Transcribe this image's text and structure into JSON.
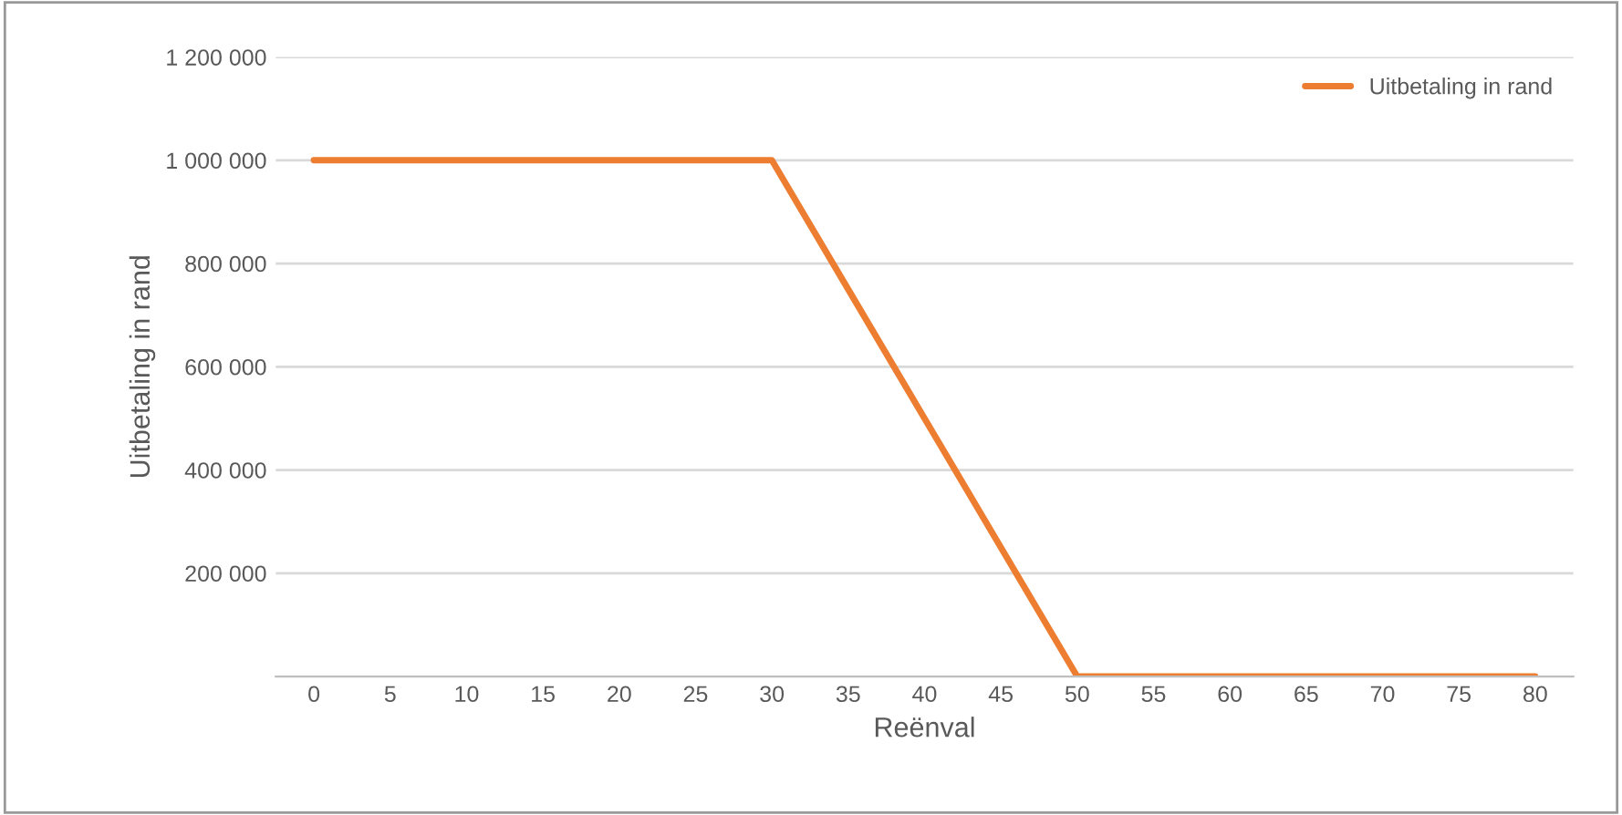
{
  "chart_data": {
    "type": "line",
    "xlabel": "Reënval",
    "ylabel": "Uitbetaling in rand",
    "categories": [
      "0",
      "5",
      "10",
      "15",
      "20",
      "25",
      "30",
      "35",
      "40",
      "45",
      "50",
      "55",
      "60",
      "65",
      "70",
      "75",
      "80"
    ],
    "series": [
      {
        "name": "Uitbetaling in rand",
        "color": "#ed7d31",
        "values": [
          1000000,
          1000000,
          1000000,
          1000000,
          1000000,
          1000000,
          1000000,
          750000,
          500000,
          250000,
          0,
          0,
          0,
          0,
          0,
          0,
          0
        ]
      }
    ],
    "ylim": [
      0,
      1200000
    ],
    "yticks": [
      {
        "value": 200000,
        "label": "200 000"
      },
      {
        "value": 400000,
        "label": "400 000"
      },
      {
        "value": 600000,
        "label": "600 000"
      },
      {
        "value": 800000,
        "label": "800 000"
      },
      {
        "value": 1000000,
        "label": "1 000 000"
      },
      {
        "value": 1200000,
        "label": "1 200 000"
      }
    ],
    "grid": "y",
    "legend": "top right",
    "marker": "none",
    "line_style": "solid"
  }
}
